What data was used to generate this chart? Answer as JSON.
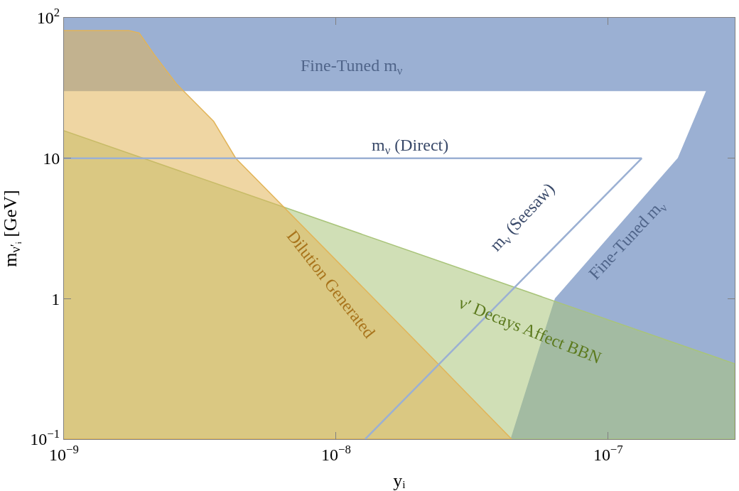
{
  "chart_data": {
    "type": "area",
    "xlabel": "yᵢ",
    "ylabel": "m$_{ν′ᵢ}$ [GeV]",
    "log": "xy",
    "xlim": [
      1e-09,
      2.92e-07
    ],
    "ylim": [
      0.1,
      100
    ],
    "xticks": [
      {
        "value": 1e-09,
        "label": "10$^{−9}$"
      },
      {
        "value": 1e-08,
        "label": "10$^{−8}$"
      },
      {
        "value": 1e-07,
        "label": "10$^{−7}$"
      }
    ],
    "yticks": [
      {
        "value": 0.1,
        "label": "10$^{−1}$"
      },
      1,
      10,
      {
        "value": 100,
        "label": "10$^{2}$"
      }
    ],
    "bands": [
      {
        "axis": "y",
        "from": 30,
        "to": 100,
        "label": "Fine-Tuned m$_{ν}$",
        "color": "#9bb0d3"
      }
    ],
    "series": [
      {
        "color": "#9bb0d3",
        "x": [
          4.4e-08,
          6.4e-08,
          1.81e-07,
          2.3e-07,
          2.92e-07
        ],
        "values": [
          0.1,
          1,
          10,
          30,
          30
        ]
      },
      {
        "color": "#a9c47a",
        "x": [
          1e-09,
          2.92e-07
        ],
        "values": [
          15.7,
          0.344
        ]
      },
      {
        "color": "#e2b458",
        "x": [
          1e-09,
          1.73e-09,
          1.89e-09,
          2.15e-09,
          2.6e-09,
          3.55e-09,
          4.28e-09,
          2.37e-08,
          4.42e-08
        ],
        "values": [
          81,
          81,
          78,
          54.5,
          33.6,
          18.3,
          10,
          0.344,
          0.1
        ]
      },
      {
        "type": "line",
        "color": "#9bb0d3",
        "x": [
          1e-09,
          1.33e-07
        ],
        "values": [
          10,
          10
        ]
      },
      {
        "type": "line",
        "color": "#9bb0d3",
        "x": [
          1.28e-08,
          1.33e-07
        ],
        "values": [
          0.1,
          10
        ]
      }
    ],
    "annotations": [
      "m$_{ν}$ (Direct)",
      "m$_{ν}$ (Seesaw)",
      "Fine-Tuned m$_{ν}$",
      "Dilution Generated",
      "ν′ Decays Affect BBN"
    ]
  }
}
